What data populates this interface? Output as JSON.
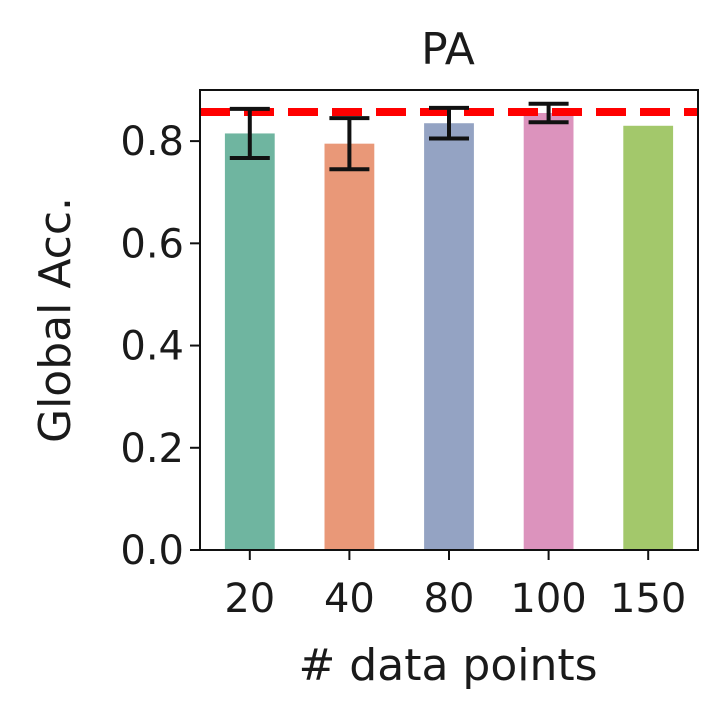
{
  "chart_data": {
    "type": "bar",
    "title": "PA",
    "xlabel": "# data points",
    "ylabel": "Global Acc.",
    "categories": [
      "20",
      "40",
      "80",
      "100",
      "150"
    ],
    "values": [
      0.815,
      0.795,
      0.835,
      0.855,
      0.83
    ],
    "errors": [
      0.048,
      0.05,
      0.03,
      0.018,
      0
    ],
    "colors": [
      "#6fb5a0",
      "#e99878",
      "#94a3c3",
      "#dc93bd",
      "#a3c86b"
    ],
    "ylim": [
      0,
      0.9
    ],
    "yticks": [
      0.0,
      0.2,
      0.4,
      0.6,
      0.8
    ],
    "ytick_labels": [
      "0.0",
      "0.2",
      "0.4",
      "0.6",
      "0.8"
    ],
    "reference_line": {
      "value": 0.857,
      "color": "#ff0000",
      "style": "dashed"
    },
    "grid": false
  }
}
